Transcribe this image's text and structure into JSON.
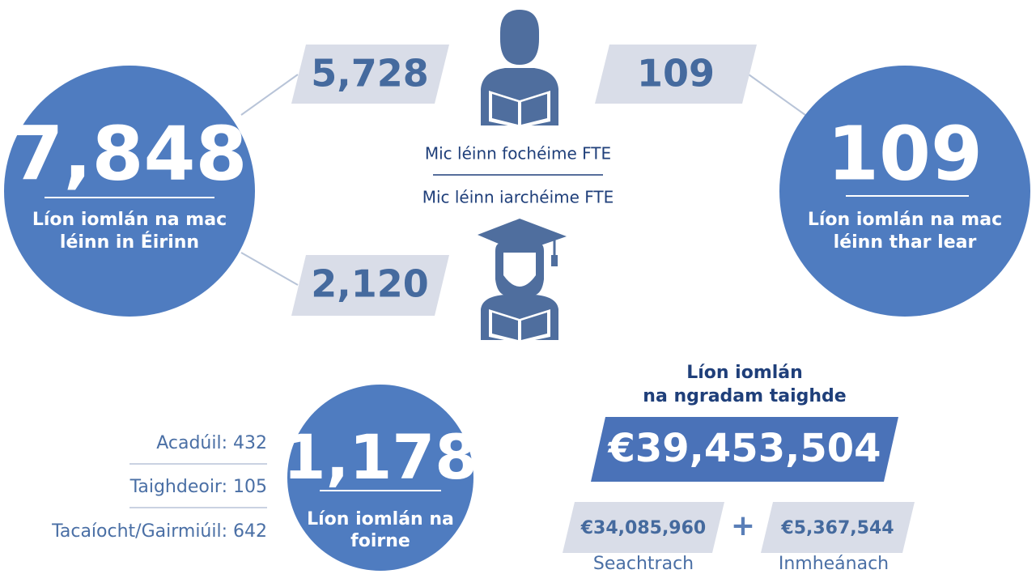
{
  "students": {
    "ireland_total": "7,848",
    "ireland_label": [
      "Líon iomlán na mac",
      "léinn in Éirinn"
    ],
    "undergrad_ireland": "5,728",
    "postgrad_ireland": "2,120",
    "undergrad_abroad": "109",
    "undergrad_label": "Mic léinn fochéime FTE",
    "postgrad_label": "Mic léinn iarchéime FTE",
    "abroad_total": "109",
    "abroad_label": [
      "Líon iomlán na mac",
      "léinn thar lear"
    ]
  },
  "staff": {
    "total": "1,178",
    "label": [
      "Líon iomlán na",
      "foirne"
    ],
    "breakdown": [
      "Acadúil: 432",
      "Taighdeoir: 105",
      "Tacaíocht/Gairmiúil: 642"
    ]
  },
  "research": {
    "title": [
      "Líon iomlán",
      "na ngradam taighde"
    ],
    "total": "€39,453,504",
    "external": "€34,085,960",
    "external_label": "Seachtrach",
    "plus": "+",
    "internal": "€5,367,544",
    "internal_label": "Inmheánach"
  }
}
